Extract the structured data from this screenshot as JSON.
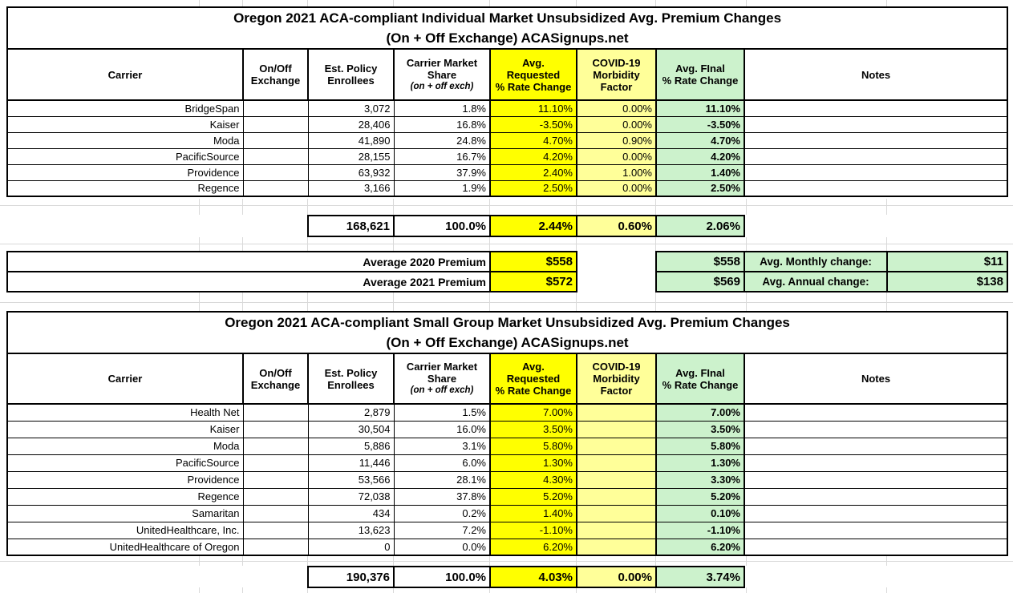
{
  "sheet": {
    "colors": {
      "requested_bg": "#FFFF00",
      "covid_bg": "#FFFF99",
      "final_bg": "#CCF2CC",
      "border": "#000000",
      "gridline": "#D9D9D9"
    },
    "columns": {
      "carrier": "Carrier",
      "onoff_l1": "On/Off",
      "onoff_l2": "Exchange",
      "enrollees_l1": "Est. Policy",
      "enrollees_l2": "Enrollees",
      "share_l1": "Carrier Market",
      "share_l2": "Share",
      "share_sub": "(on + off exch)",
      "requested_l1": "Avg.",
      "requested_l2": "Requested",
      "requested_l3": "% Rate Change",
      "covid_l1": "COVID-19",
      "covid_l2": "Morbidity",
      "covid_l3": "Factor",
      "final_l1": "Avg. FInal",
      "final_l2": "% Rate Change",
      "notes": "Notes"
    },
    "individual": {
      "title1": "Oregon 2021 ACA-compliant Individual Market Unsubsidized Avg. Premium Changes",
      "title2": "(On + Off Exchange) ACASignups.net",
      "rows": [
        {
          "carrier": "BridgeSpan",
          "enrollees": "3,072",
          "share": "1.8%",
          "requested": "11.10%",
          "covid": "0.00%",
          "final": "11.10%"
        },
        {
          "carrier": "Kaiser",
          "enrollees": "28,406",
          "share": "16.8%",
          "requested": "-3.50%",
          "covid": "0.00%",
          "final": "-3.50%"
        },
        {
          "carrier": "Moda",
          "enrollees": "41,890",
          "share": "24.8%",
          "requested": "4.70%",
          "covid": "0.90%",
          "final": "4.70%"
        },
        {
          "carrier": "PacificSource",
          "enrollees": "28,155",
          "share": "16.7%",
          "requested": "4.20%",
          "covid": "0.00%",
          "final": "4.20%"
        },
        {
          "carrier": "Providence",
          "enrollees": "63,932",
          "share": "37.9%",
          "requested": "2.40%",
          "covid": "1.00%",
          "final": "1.40%"
        },
        {
          "carrier": "Regence",
          "enrollees": "3,166",
          "share": "1.9%",
          "requested": "2.50%",
          "covid": "0.00%",
          "final": "2.50%"
        }
      ],
      "totals": {
        "enrollees": "168,621",
        "share": "100.0%",
        "requested": "2.44%",
        "covid": "0.60%",
        "final": "2.06%"
      },
      "premiums": [
        {
          "label": "Average 2020 Premium",
          "requested": "$558",
          "final": "$558"
        },
        {
          "label": "Average 2021 Premium",
          "requested": "$572",
          "final": "$569"
        }
      ],
      "changes": [
        {
          "label": "Avg. Monthly change:",
          "value": "$11"
        },
        {
          "label": "Avg. Annual change:",
          "value": "$138"
        }
      ]
    },
    "small_group": {
      "title1": "Oregon 2021 ACA-compliant Small Group Market Unsubsidized Avg. Premium Changes",
      "title2": "(On + Off Exchange) ACASignups.net",
      "rows": [
        {
          "carrier": "Health Net",
          "enrollees": "2,879",
          "share": "1.5%",
          "requested": "7.00%",
          "covid": "",
          "final": "7.00%"
        },
        {
          "carrier": "Kaiser",
          "enrollees": "30,504",
          "share": "16.0%",
          "requested": "3.50%",
          "covid": "",
          "final": "3.50%"
        },
        {
          "carrier": "Moda",
          "enrollees": "5,886",
          "share": "3.1%",
          "requested": "5.80%",
          "covid": "",
          "final": "5.80%"
        },
        {
          "carrier": "PacificSource",
          "enrollees": "11,446",
          "share": "6.0%",
          "requested": "1.30%",
          "covid": "",
          "final": "1.30%"
        },
        {
          "carrier": "Providence",
          "enrollees": "53,566",
          "share": "28.1%",
          "requested": "4.30%",
          "covid": "",
          "final": "3.30%"
        },
        {
          "carrier": "Regence",
          "enrollees": "72,038",
          "share": "37.8%",
          "requested": "5.20%",
          "covid": "",
          "final": "5.20%"
        },
        {
          "carrier": "Samaritan",
          "enrollees": "434",
          "share": "0.2%",
          "requested": "1.40%",
          "covid": "",
          "final": "0.10%"
        },
        {
          "carrier": "UnitedHealthcare, Inc.",
          "enrollees": "13,623",
          "share": "7.2%",
          "requested": "-1.10%",
          "covid": "",
          "final": "-1.10%"
        },
        {
          "carrier": "UnitedHealthcare of Oregon",
          "enrollees": "0",
          "share": "0.0%",
          "requested": "6.20%",
          "covid": "",
          "final": "6.20%"
        }
      ],
      "totals": {
        "enrollees": "190,376",
        "share": "100.0%",
        "requested": "4.03%",
        "covid": "0.00%",
        "final": "3.74%"
      }
    }
  }
}
